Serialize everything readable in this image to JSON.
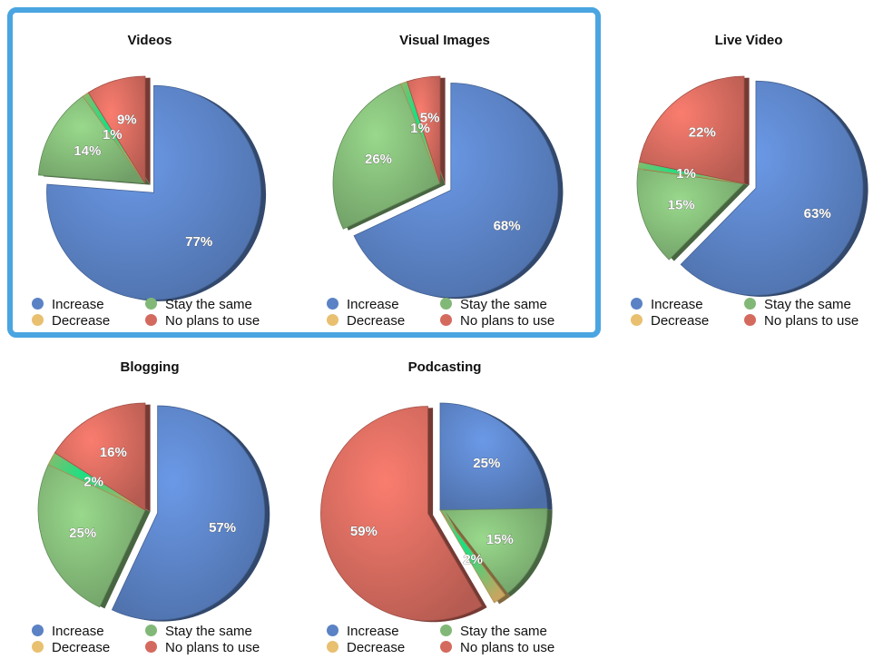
{
  "colors": {
    "increase": "#5b82c4",
    "stay": "#82b877",
    "decrease": "#e8c070",
    "no_plans": "#d46a5e",
    "highlight": "#4aa5e0"
  },
  "legend": [
    "Increase",
    "Stay the same",
    "Decrease",
    "No plans to use"
  ],
  "chart_data": [
    {
      "type": "pie",
      "title": "Videos",
      "categories": [
        "Increase",
        "Stay the same",
        "Decrease",
        "No plans to use"
      ],
      "values": [
        77,
        14,
        1,
        9
      ],
      "labels": [
        "77%",
        "14%",
        "1%",
        "9%"
      ],
      "exploded": "Increase",
      "highlighted": true,
      "legend_placement": "bottom"
    },
    {
      "type": "pie",
      "title": "Visual Images",
      "categories": [
        "Increase",
        "Stay the same",
        "Decrease",
        "No plans to use"
      ],
      "values": [
        68,
        26,
        1,
        5
      ],
      "labels": [
        "68%",
        "26%",
        "1%",
        "5%"
      ],
      "exploded": "Increase",
      "highlighted": true,
      "legend_placement": "bottom"
    },
    {
      "type": "pie",
      "title": "Live Video",
      "categories": [
        "Increase",
        "Stay the same",
        "Decrease",
        "No plans to use"
      ],
      "values": [
        63,
        15,
        1,
        22
      ],
      "labels": [
        "63%",
        "15%",
        "1%",
        "22%"
      ],
      "exploded": "Increase",
      "highlighted": false,
      "legend_placement": "bottom"
    },
    {
      "type": "pie",
      "title": "Blogging",
      "categories": [
        "Increase",
        "Stay the same",
        "Decrease",
        "No plans to use"
      ],
      "values": [
        57,
        25,
        2,
        16
      ],
      "labels": [
        "57%",
        "25%",
        "2%",
        "16%"
      ],
      "exploded": "Increase",
      "highlighted": false,
      "legend_placement": "bottom"
    },
    {
      "type": "pie",
      "title": "Podcasting",
      "categories": [
        "Increase",
        "Stay the same",
        "Decrease",
        "No plans to use"
      ],
      "values": [
        25,
        15,
        2,
        59
      ],
      "labels": [
        "25%",
        "15%",
        "2%",
        "59%"
      ],
      "exploded": "No plans to use",
      "highlighted": false,
      "legend_placement": "bottom"
    }
  ]
}
